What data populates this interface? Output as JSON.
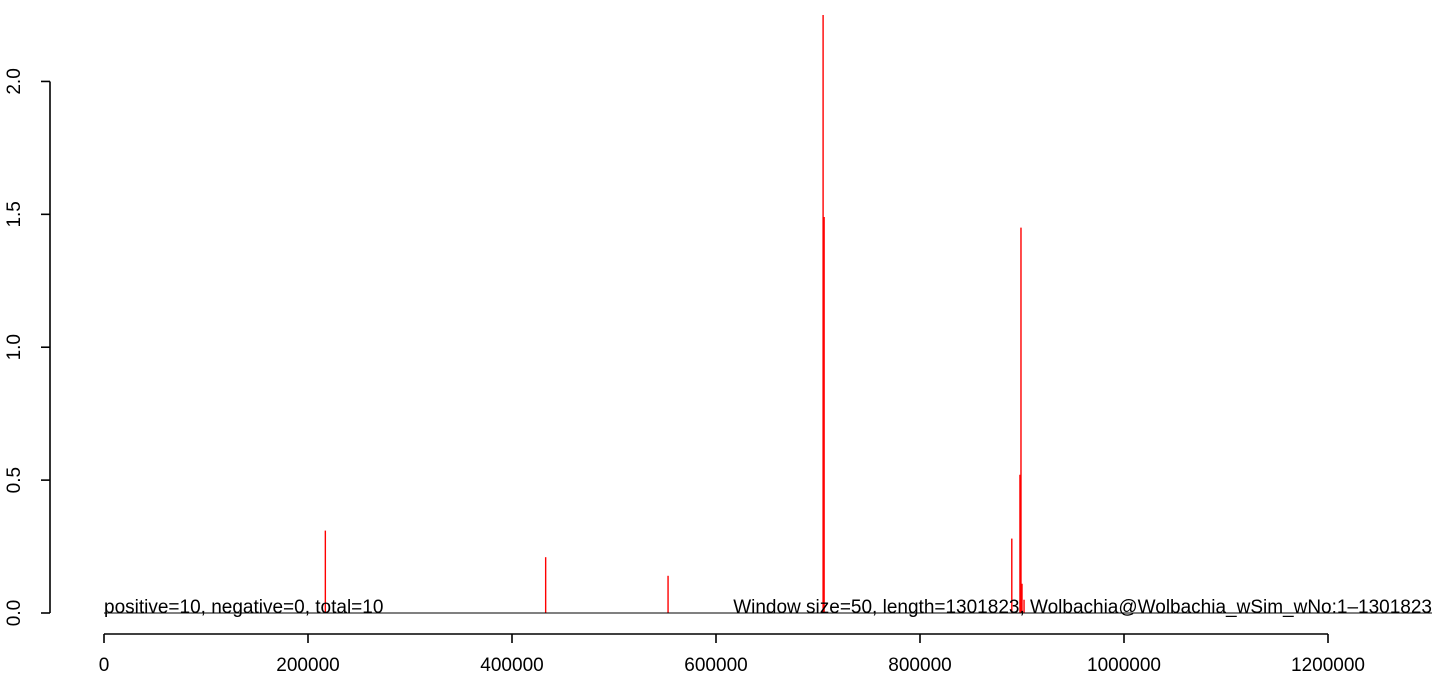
{
  "chart_data": {
    "type": "bar",
    "xlim": [
      0,
      1200000
    ],
    "ylim": [
      0,
      2.25
    ],
    "x_ticks": [
      0,
      200000,
      400000,
      600000,
      800000,
      1000000,
      1200000
    ],
    "x_tick_labels": [
      "0",
      "200000",
      "400000",
      "600000",
      "800000",
      "1000000",
      "1200000"
    ],
    "y_ticks": [
      0.0,
      0.5,
      1.0,
      1.5,
      2.0
    ],
    "y_tick_labels": [
      "0.0",
      "0.5",
      "1.0",
      "1.5",
      "2.0"
    ],
    "bar_color": "#ff0000",
    "baseline_color": "#000000",
    "grid": false,
    "series": [
      {
        "values": [
          {
            "x": 217000,
            "y": 0.31
          },
          {
            "x": 433000,
            "y": 0.21
          },
          {
            "x": 553000,
            "y": 0.14
          },
          {
            "x": 705000,
            "y": 2.25
          },
          {
            "x": 706000,
            "y": 1.49
          },
          {
            "x": 890000,
            "y": 0.28
          },
          {
            "x": 898000,
            "y": 0.52
          },
          {
            "x": 899000,
            "y": 1.45
          },
          {
            "x": 900000,
            "y": 0.11
          },
          {
            "x": 902000,
            "y": 0.05
          }
        ]
      }
    ],
    "annotations": {
      "left": "positive=10, negative=0, total=10",
      "right": "Window size=50, length=1301823, Wolbachia@Wolbachia_wSim_wNo:1–1301823"
    }
  }
}
